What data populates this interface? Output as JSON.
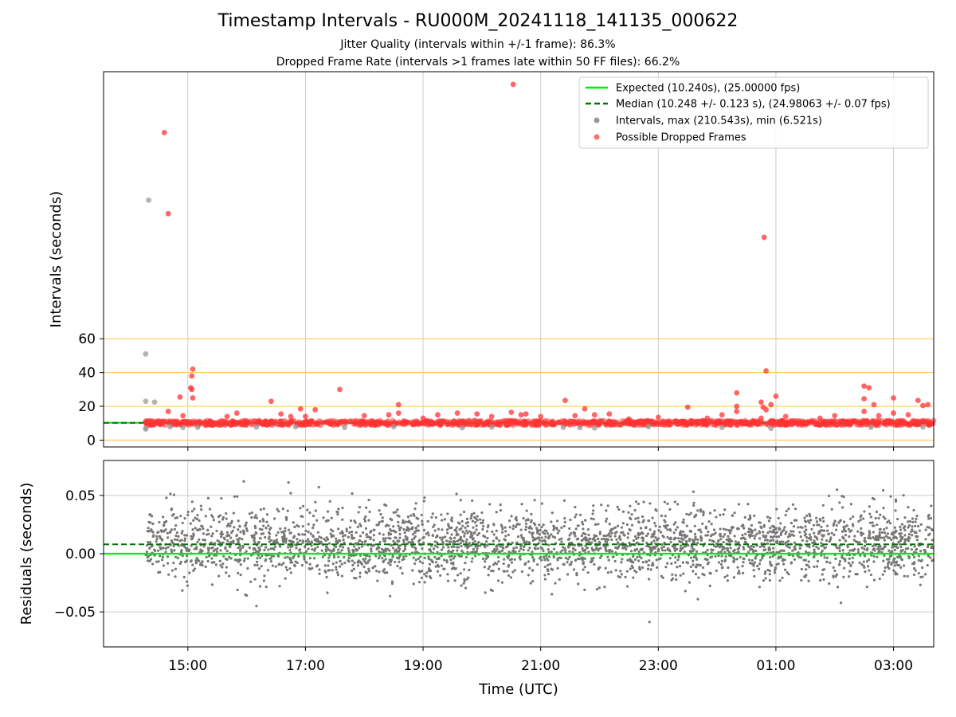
{
  "figure": {
    "title": "Timestamp Intervals - RU000M_20241118_141135_000622",
    "subtitle1": "Jitter Quality (intervals within +/-1 frame): 86.3%",
    "subtitle2": "Dropped Frame Rate (intervals >1 frames late within 50 FF files): 66.2%"
  },
  "colors": {
    "expected": "#00ee00",
    "median": "#007700",
    "intervals": "#999999",
    "dropped": "#ff3333",
    "threshold": "#ffcc66",
    "residuals": "#777777",
    "grid": "#cccccc"
  },
  "chart_data": [
    {
      "type": "scatter",
      "ylabel": "Intervals (seconds)",
      "xlabel": "",
      "x_ticks": [
        "15:00",
        "17:00",
        "19:00",
        "21:00",
        "23:00",
        "01:00",
        "03:00"
      ],
      "y_ticks": [
        0,
        20,
        40,
        60
      ],
      "ylim": [
        -4,
        218
      ],
      "xlim": [
        "2024-11-18T13:34",
        "2024-11-19T03:41"
      ],
      "grid": "vertical",
      "threshold_lines": [
        0,
        20,
        40,
        60
      ],
      "legend_position": "upper right",
      "series": [
        {
          "name": "Expected (10.240s), (25.00000 fps)",
          "kind": "hline",
          "y": 10.24
        },
        {
          "name": "Median (10.248 +/- 0.123 s), (24.98063 +/- 0.07 fps)",
          "kind": "hline",
          "y": 10.248
        },
        {
          "name": "Intervals, max (210.543s), min (6.521s)",
          "kind": "scatter",
          "points": [
            [
              "2024-11-18T14:17",
              51.0
            ],
            [
              "2024-11-18T14:20",
              142.0
            ],
            [
              "2024-11-18T14:17",
              23.0
            ],
            [
              "2024-11-18T14:26",
              22.5
            ],
            [
              "2024-11-18T14:17",
              7.0
            ],
            [
              "2024-11-18T14:17",
              6.6
            ],
            [
              "2024-11-18T14:42",
              8.0
            ],
            [
              "2024-11-18T14:55",
              7.5
            ],
            [
              "2024-11-18T15:10",
              7.6
            ],
            [
              "2024-11-18T16:10",
              7.8
            ],
            [
              "2024-11-18T16:50",
              7.9
            ],
            [
              "2024-11-18T17:40",
              7.5
            ],
            [
              "2024-11-18T18:30",
              8.0
            ],
            [
              "2024-11-18T19:40",
              7.3
            ],
            [
              "2024-11-18T20:10",
              7.8
            ],
            [
              "2024-11-18T21:23",
              7.6
            ],
            [
              "2024-11-18T21:40",
              7.4
            ],
            [
              "2024-11-18T21:55",
              7.2
            ],
            [
              "2024-11-18T22:50",
              8.0
            ],
            [
              "2024-11-19T00:05",
              7.5
            ],
            [
              "2024-11-19T00:55",
              7.0
            ],
            [
              "2024-11-19T02:37",
              7.6
            ],
            [
              "2024-11-19T03:30",
              7.8
            ]
          ]
        },
        {
          "name": "Possible Dropped Frames",
          "kind": "scatter",
          "points": [
            [
              "2024-11-18T14:36",
              182.0
            ],
            [
              "2024-11-18T14:40",
              134.0
            ],
            [
              "2024-11-18T20:32",
              210.5
            ],
            [
              "2024-11-19T00:48",
              120.0
            ],
            [
              "2024-11-18T15:05",
              42.0
            ],
            [
              "2024-11-18T15:04",
              38.0
            ],
            [
              "2024-11-18T15:03",
              31.0
            ],
            [
              "2024-11-18T15:04",
              30.0
            ],
            [
              "2024-11-18T15:05",
              25.0
            ],
            [
              "2024-11-18T14:52",
              25.5
            ],
            [
              "2024-11-18T14:40",
              17.0
            ],
            [
              "2024-11-18T14:55",
              14.5
            ],
            [
              "2024-11-18T15:40",
              14.0
            ],
            [
              "2024-11-18T15:50",
              16.0
            ],
            [
              "2024-11-18T16:25",
              23.0
            ],
            [
              "2024-11-18T16:35",
              15.5
            ],
            [
              "2024-11-18T16:45",
              14.0
            ],
            [
              "2024-11-18T17:00",
              14.0
            ],
            [
              "2024-11-18T16:55",
              18.5
            ],
            [
              "2024-11-18T17:10",
              18.0
            ],
            [
              "2024-11-18T17:35",
              30.0
            ],
            [
              "2024-11-18T18:00",
              14.5
            ],
            [
              "2024-11-18T18:25",
              15.0
            ],
            [
              "2024-11-18T18:35",
              21.0
            ],
            [
              "2024-11-18T18:35",
              16.0
            ],
            [
              "2024-11-18T19:00",
              13.0
            ],
            [
              "2024-11-18T19:15",
              15.0
            ],
            [
              "2024-11-18T19:35",
              16.0
            ],
            [
              "2024-11-18T19:55",
              15.5
            ],
            [
              "2024-11-18T20:10",
              14.0
            ],
            [
              "2024-11-18T20:30",
              16.5
            ],
            [
              "2024-11-18T20:40",
              15.0
            ],
            [
              "2024-11-18T20:45",
              15.5
            ],
            [
              "2024-11-18T21:00",
              14.0
            ],
            [
              "2024-11-18T21:25",
              23.5
            ],
            [
              "2024-11-18T21:35",
              14.5
            ],
            [
              "2024-11-18T21:45",
              18.5
            ],
            [
              "2024-11-18T21:55",
              15.0
            ],
            [
              "2024-11-18T22:10",
              15.5
            ],
            [
              "2024-11-18T22:30",
              12.5
            ],
            [
              "2024-11-18T23:00",
              13.5
            ],
            [
              "2024-11-18T23:30",
              19.5
            ],
            [
              "2024-11-18T23:50",
              13.0
            ],
            [
              "2024-11-19T00:05",
              15.0
            ],
            [
              "2024-11-19T00:20",
              17.0
            ],
            [
              "2024-11-19T00:20",
              20.0
            ],
            [
              "2024-11-19T00:20",
              28.0
            ],
            [
              "2024-11-19T00:45",
              22.5
            ],
            [
              "2024-11-19T00:47",
              19.5
            ],
            [
              "2024-11-19T00:50",
              18.0
            ],
            [
              "2024-11-19T00:50",
              41.0
            ],
            [
              "2024-11-19T00:55",
              21.0
            ],
            [
              "2024-11-19T01:00",
              26.0
            ],
            [
              "2024-11-19T00:45",
              13.0
            ],
            [
              "2024-11-19T01:10",
              14.0
            ],
            [
              "2024-11-19T01:45",
              13.0
            ],
            [
              "2024-11-19T02:00",
              14.5
            ],
            [
              "2024-11-19T02:30",
              32.0
            ],
            [
              "2024-11-19T02:35",
              31.0
            ],
            [
              "2024-11-19T02:30",
              24.5
            ],
            [
              "2024-11-19T02:30",
              17.0
            ],
            [
              "2024-11-19T02:40",
              21.0
            ],
            [
              "2024-11-19T02:45",
              14.5
            ],
            [
              "2024-11-19T03:00",
              25.0
            ],
            [
              "2024-11-19T03:00",
              16.0
            ],
            [
              "2024-11-19T03:15",
              15.0
            ],
            [
              "2024-11-19T03:25",
              23.5
            ],
            [
              "2024-11-19T03:30",
              20.5
            ],
            [
              "2024-11-19T03:35",
              21.0
            ]
          ]
        }
      ]
    },
    {
      "type": "scatter",
      "ylabel": "Residuals (seconds)",
      "xlabel": "Time (UTC)",
      "x_ticks": [
        "15:00",
        "17:00",
        "19:00",
        "21:00",
        "23:00",
        "01:00",
        "03:00"
      ],
      "y_ticks": [
        0.05,
        0.0,
        -0.05
      ],
      "y_tick_labels": [
        "0.05",
        "0.00",
        "−0.05"
      ],
      "ylim": [
        -0.08,
        0.08
      ],
      "xlim": [
        "2024-11-18T13:34",
        "2024-11-19T03:41"
      ],
      "grid": "both",
      "series": [
        {
          "name": "Expected",
          "kind": "hline",
          "y": 0.0
        },
        {
          "name": "Median",
          "kind": "hline",
          "y": 0.008
        },
        {
          "name": "Residuals",
          "kind": "scatter",
          "range_x": [
            "2024-11-18T14:17",
            "2024-11-19T03:41"
          ],
          "spread_sd": 0.015,
          "center": 0.008,
          "count": 3200
        }
      ]
    }
  ]
}
